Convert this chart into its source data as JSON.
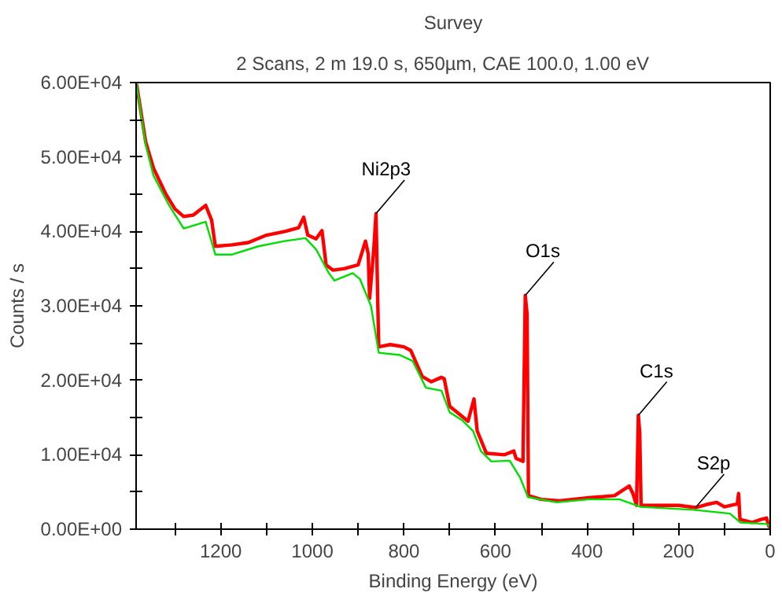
{
  "chart_data": {
    "type": "line",
    "title": "Survey",
    "subtitle": "2 Scans,  2 m 19.0 s,  650µm,  CAE 100.0,  1.00 eV",
    "xlabel": "Binding Energy (eV)",
    "ylabel": "Counts / s",
    "xlim": [
      1385,
      0
    ],
    "ylim": [
      0,
      60000
    ],
    "xticks": [
      {
        "value": 1300,
        "label": null
      },
      1200,
      {
        "value": 1100,
        "label": null
      },
      1000,
      {
        "value": 900,
        "label": null
      },
      800,
      {
        "value": 700,
        "label": null
      },
      600,
      {
        "value": 500,
        "label": null
      },
      400,
      {
        "value": 300,
        "label": null
      },
      200,
      {
        "value": 100,
        "label": null
      },
      0
    ],
    "yticks": [
      {
        "value": 0,
        "label": "0.00E+00"
      },
      {
        "value": 5000,
        "label": null
      },
      {
        "value": 10000,
        "label": "1.00E+04"
      },
      {
        "value": 15000,
        "label": null
      },
      {
        "value": 20000,
        "label": "2.00E+04"
      },
      {
        "value": 25000,
        "label": null
      },
      {
        "value": 30000,
        "label": "3.00E+04"
      },
      {
        "value": 35000,
        "label": null
      },
      {
        "value": 40000,
        "label": "4.00E+04"
      },
      {
        "value": 45000,
        "label": null
      },
      {
        "value": 50000,
        "label": "5.00E+04"
      },
      {
        "value": 55000,
        "label": null
      },
      {
        "value": 60000,
        "label": "6.00E+04"
      }
    ],
    "grid": false,
    "marker": "none",
    "line_style": "solid",
    "series": [
      {
        "color": "#ff0000",
        "x": [
          1384,
          1364,
          1347,
          1320,
          1300,
          1281,
          1260,
          1233,
          1220,
          1212,
          1175,
          1140,
          1100,
          1060,
          1030,
          1019,
          1010,
          992,
          979,
          970,
          955,
          930,
          900,
          884,
          878,
          875,
          866,
          861,
          857,
          855,
          830,
          800,
          785,
          760,
          740,
          718,
          712,
          700,
          660,
          647,
          640,
          620,
          580,
          560,
          555,
          540,
          535,
          531,
          528,
          500,
          460,
          400,
          340,
          308,
          300,
          292,
          288,
          285,
          282,
          250,
          200,
          163,
          140,
          117,
          100,
          72,
          69,
          66,
          40,
          20,
          8,
          3,
          0
        ],
        "values": [
          59800,
          52000,
          48500,
          45000,
          43000,
          42000,
          42200,
          43500,
          41500,
          38000,
          38200,
          38500,
          39500,
          40000,
          40500,
          41900,
          39500,
          39000,
          40100,
          35500,
          34800,
          35000,
          35500,
          38700,
          37000,
          31000,
          37500,
          42400,
          30000,
          24500,
          24800,
          24500,
          24000,
          20500,
          19800,
          20400,
          20200,
          16500,
          14500,
          17500,
          13200,
          10200,
          10000,
          10500,
          9500,
          9100,
          31400,
          28900,
          4500,
          4000,
          3800,
          4200,
          4500,
          5800,
          4800,
          3200,
          15300,
          13000,
          3200,
          3200,
          3200,
          2900,
          3300,
          3600,
          3000,
          3400,
          4800,
          1300,
          900,
          1300,
          1500,
          400,
          300
        ]
      },
      {
        "color": "#00dd00",
        "x": [
          1384,
          1364,
          1347,
          1313,
          1281,
          1233,
          1212,
          1175,
          1118,
          1061,
          1015,
          992,
          964,
          952,
          912,
          896,
          872,
          855,
          809,
          781,
          752,
          718,
          700,
          672,
          649,
          632,
          609,
          569,
          546,
          529,
          466,
          397,
          329,
          283,
          168,
          88,
          65,
          8,
          0
        ],
        "values": [
          59800,
          51600,
          47500,
          43500,
          40400,
          41300,
          36900,
          36900,
          38000,
          38700,
          39100,
          37600,
          34400,
          33400,
          34400,
          33600,
          30000,
          23700,
          23400,
          22600,
          19000,
          18600,
          15700,
          14600,
          13200,
          10500,
          9100,
          9200,
          6900,
          4300,
          3600,
          4000,
          4000,
          3000,
          2600,
          2100,
          900,
          700,
          400
        ]
      }
    ],
    "annotations": [
      {
        "text": "Ni2p3",
        "x": 861,
        "y": 42400
      },
      {
        "text": "O1s",
        "x": 535,
        "y": 31400
      },
      {
        "text": "C1s",
        "x": 288,
        "y": 15300
      },
      {
        "text": "S2p",
        "x": 163,
        "y": 2900
      }
    ]
  }
}
